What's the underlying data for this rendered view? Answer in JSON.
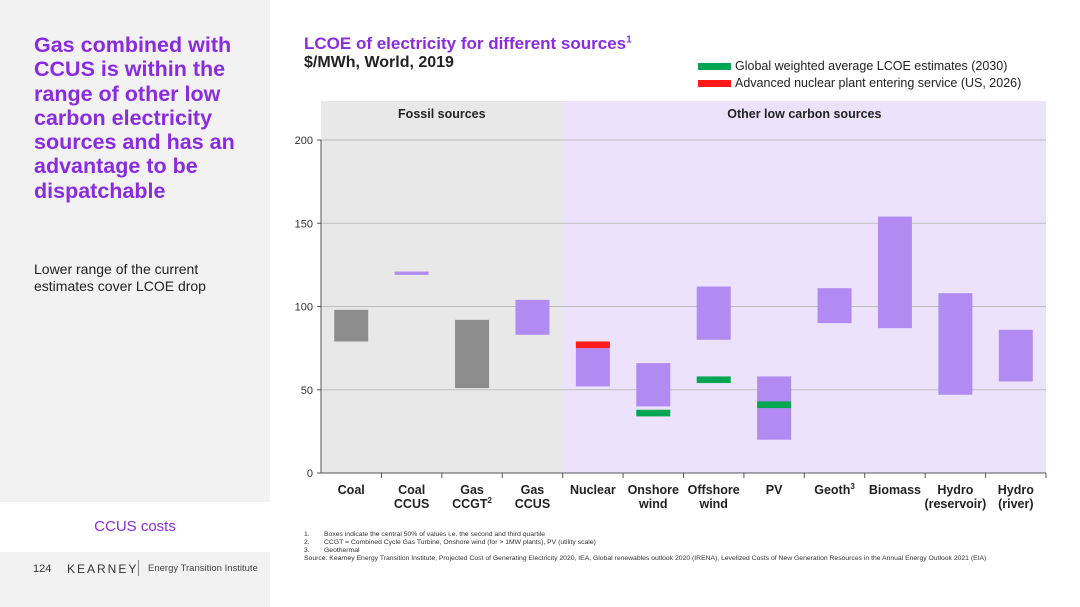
{
  "left_panel": {
    "headline": "Gas combined with CCUS is within the range of other low carbon electricity sources and has an advantage to be dispatchable",
    "subtext": "Lower range of the current estimates cover LCOE drop",
    "ccus_label": "CCUS costs"
  },
  "footer": {
    "page_number": "124",
    "brand": "KEARNEY",
    "institute": "Energy Transition Institute"
  },
  "chart_header": {
    "title": "LCOE of electricity for different sources",
    "title_sup": "1",
    "subtitle": "$/MWh, World, 2019"
  },
  "legend": [
    {
      "label": "Global weighted average LCOE estimates (2030)",
      "color": "#00a651"
    },
    {
      "label": "Advanced nuclear plant entering service (US, 2026)",
      "color": "#ff1a1a"
    }
  ],
  "colors": {
    "fossil_bg": "#e8e8e8",
    "low_carbon_bg": "#ede2fb",
    "fossil_box": "#8c8c8c",
    "low_carbon_box": "#b18bf2",
    "green_marker": "#00a651",
    "red_marker": "#ff1a1a",
    "accent": "#8a2be2"
  },
  "chart_data": {
    "type": "bar",
    "chart_kind": "floating range boxes",
    "ylim": [
      0,
      200
    ],
    "y_ticks": [
      0,
      50,
      100,
      150,
      200
    ],
    "grid": true,
    "groups": [
      {
        "label": "Fossil sources",
        "from": 0,
        "to": 4
      },
      {
        "label": "Other low carbon sources",
        "from": 4,
        "to": 12
      }
    ],
    "categories": [
      {
        "label": [
          "Coal"
        ],
        "sup": "",
        "group": "fossil",
        "range": [
          79,
          98
        ]
      },
      {
        "label": [
          "Coal",
          "CCUS"
        ],
        "sup": "",
        "group": "fossil",
        "range": [
          119,
          121
        ],
        "color_group": "low_carbon"
      },
      {
        "label": [
          "Gas",
          "CCGT"
        ],
        "sup": "2",
        "group": "fossil",
        "range": [
          51,
          92
        ]
      },
      {
        "label": [
          "Gas",
          "CCUS"
        ],
        "sup": "",
        "group": "fossil",
        "range": [
          83,
          104
        ],
        "color_group": "low_carbon"
      },
      {
        "label": [
          "Nuclear"
        ],
        "sup": "",
        "group": "low_carbon",
        "range": [
          52,
          75
        ],
        "marker": {
          "type": "red",
          "range": [
            75,
            79
          ]
        }
      },
      {
        "label": [
          "Onshore",
          "wind"
        ],
        "sup": "",
        "group": "low_carbon",
        "range": [
          40,
          66
        ],
        "marker": {
          "type": "green",
          "range": [
            34,
            38
          ]
        }
      },
      {
        "label": [
          "Offshore",
          "wind"
        ],
        "sup": "",
        "group": "low_carbon",
        "range": [
          80,
          112
        ],
        "marker": {
          "type": "green",
          "range": [
            54,
            58
          ]
        }
      },
      {
        "label": [
          "PV"
        ],
        "sup": "",
        "group": "low_carbon",
        "range": [
          20,
          58
        ],
        "marker": {
          "type": "green",
          "range": [
            39,
            43
          ]
        }
      },
      {
        "label": [
          "Geoth"
        ],
        "sup": "3",
        "group": "low_carbon",
        "range": [
          90,
          111
        ]
      },
      {
        "label": [
          "Biomass"
        ],
        "sup": "",
        "group": "low_carbon",
        "range": [
          87,
          154
        ]
      },
      {
        "label": [
          "Hydro",
          "(reservoir)"
        ],
        "sup": "",
        "group": "low_carbon",
        "range": [
          47,
          108
        ]
      },
      {
        "label": [
          "Hydro",
          "(river)"
        ],
        "sup": "",
        "group": "low_carbon",
        "range": [
          55,
          86
        ]
      }
    ]
  },
  "notes": [
    {
      "num": "1.",
      "text": "Boxes indicate the central 50% of values i.e. the second and third quartile"
    },
    {
      "num": "2.",
      "text": "CCGT = Combined Cycle Gas Turbine, Onshore wind (for > 1MW plants), PV (utility scale)"
    },
    {
      "num": "3.",
      "text": "Geothermal"
    }
  ],
  "source": "Source: Kearney Energy Transition Institute, Projected Cost of Generating Electricity 2020, IEA, Global renewables outlook 2020 (IRENA), Levelized Costs of New Generation Resources in the Annual Energy Outlook 2021 (EIA)"
}
